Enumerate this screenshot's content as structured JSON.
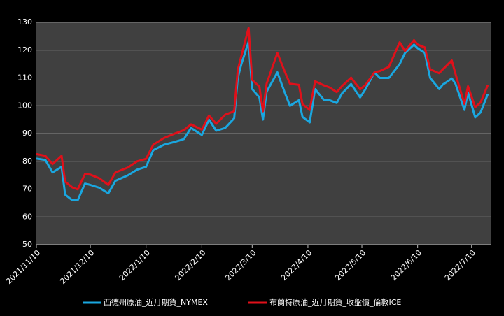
{
  "chart_data": {
    "type": "line",
    "x": [
      "2021/11/10",
      "2021/11/15",
      "2021/11/19",
      "2021/11/24",
      "2021/11/26",
      "2021/11/30",
      "2021/12/3",
      "2021/12/7",
      "2021/12/10",
      "2021/12/15",
      "2021/12/20",
      "2021/12/24",
      "2021/12/31",
      "2022/1/5",
      "2022/1/10",
      "2022/1/14",
      "2022/1/20",
      "2022/1/26",
      "2022/1/31",
      "2022/2/4",
      "2022/2/10",
      "2022/2/14",
      "2022/2/18",
      "2022/2/23",
      "2022/2/28",
      "2022/3/2",
      "2022/3/4",
      "2022/3/8",
      "2022/3/10",
      "2022/3/14",
      "2022/3/16",
      "2022/3/18",
      "2022/3/24",
      "2022/3/28",
      "2022/3/31",
      "2022/4/5",
      "2022/4/7",
      "2022/4/11",
      "2022/4/14",
      "2022/4/19",
      "2022/4/22",
      "2022/4/26",
      "2022/4/29",
      "2022/5/4",
      "2022/5/9",
      "2022/5/12",
      "2022/5/17",
      "2022/5/20",
      "2022/5/25",
      "2022/5/31",
      "2022/6/3",
      "2022/6/8",
      "2022/6/10",
      "2022/6/14",
      "2022/6/17",
      "2022/6/22",
      "2022/6/24",
      "2022/6/29",
      "2022/7/1",
      "2022/7/6",
      "2022/7/8",
      "2022/7/12",
      "2022/7/15",
      "2022/7/19"
    ],
    "series": [
      {
        "name": "西德州原油_近月期貨_NYMEX",
        "color": "#1aa7e0",
        "values": [
          81,
          80.5,
          76,
          78,
          68,
          66,
          66,
          72,
          71.5,
          70.5,
          68.5,
          73,
          75,
          77,
          78,
          84,
          86,
          87,
          88,
          92,
          89.5,
          95,
          91,
          92,
          95.5,
          110,
          115,
          123,
          106,
          103,
          95,
          105,
          112,
          105,
          100,
          102,
          96,
          94,
          106,
          102,
          102,
          101,
          104.5,
          107.8,
          103,
          106,
          112,
          110,
          110,
          115,
          119,
          122,
          120.7,
          119,
          110,
          106,
          107.6,
          109.8,
          108,
          98.5,
          104.8,
          95.8,
          97.6,
          104.2
        ]
      },
      {
        "name": "布蘭特原油_近月期貨_收盤價_倫敦ICE",
        "color": "#e0101a",
        "values": [
          82.6,
          82,
          79,
          82,
          72.7,
          70.6,
          69.9,
          75.4,
          75.2,
          73.9,
          71.5,
          76,
          77.8,
          80,
          80.9,
          86,
          88.4,
          90,
          91.2,
          93.3,
          91.4,
          96.5,
          93.5,
          96.8,
          98,
          112.9,
          118,
          127.98,
          109.3,
          106.9,
          98,
          107.9,
          119,
          112.5,
          107.9,
          107.5,
          100.6,
          98.5,
          108.8,
          107.3,
          106.6,
          104.9,
          107.1,
          110.1,
          105.9,
          107.5,
          112,
          112.5,
          114,
          122.8,
          119.7,
          123.6,
          122,
          121,
          113.1,
          111.7,
          113.1,
          116.3,
          111.6,
          100.7,
          107,
          99.5,
          101.2,
          107.4
        ]
      }
    ],
    "xlim": [
      "2021/11/10",
      "2022/7/21"
    ],
    "xticks": [
      "2021/11/10",
      "2021/12/10",
      "2022/1/10",
      "2022/2/10",
      "2022/3/10",
      "2022/4/10",
      "2022/5/10",
      "2022/6/10",
      "2022/7/10"
    ],
    "ylim": [
      50,
      130
    ],
    "yticks": [
      50,
      60,
      70,
      80,
      90,
      100,
      110,
      120,
      130
    ],
    "grid": true,
    "legend": "bottom"
  }
}
